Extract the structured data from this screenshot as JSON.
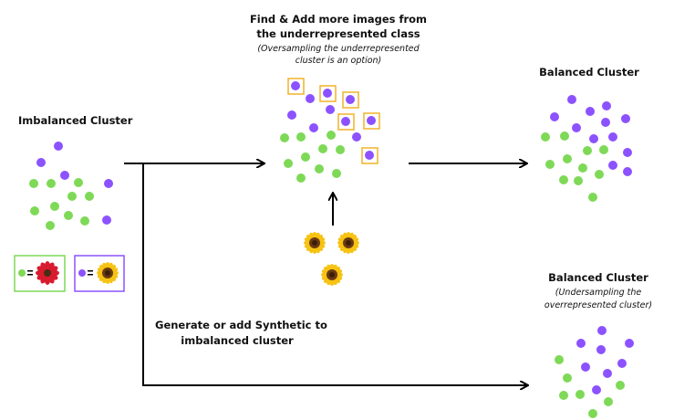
{
  "labels": {
    "imbalanced": "Imbalanced Cluster",
    "find_line1": "Find & Add more images from",
    "find_line2": "the underrepresented class",
    "find_sub1": "(Oversampling the underrepresented",
    "find_sub2": "cluster is an option)",
    "balanced_top": "Balanced Cluster",
    "balanced_bottom": "Balanced Cluster",
    "under_sub1": "(Undersampling the",
    "under_sub2": "overrepresented cluster)",
    "synthetic_line1": "Generate or add Synthetic to",
    "synthetic_line2": "imbalanced cluster"
  },
  "legend": [
    {
      "dot": "green",
      "equals": "=",
      "flower": "red-flower-icon"
    },
    {
      "dot": "purple",
      "equals": "=",
      "flower": "sunflower-icon"
    }
  ],
  "colors": {
    "green": "#7ed957",
    "purple": "#8c52ff",
    "highlight": "#f0b429",
    "arrow": "#000000",
    "legend_green_border": "#7ed957",
    "legend_purple_border": "#8c52ff"
  }
}
